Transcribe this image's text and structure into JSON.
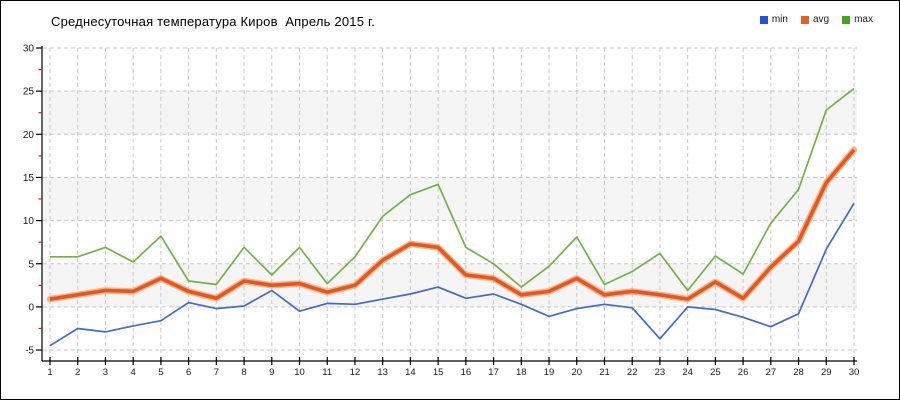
{
  "title": "Среднесуточная температура Киров  Апрель 2015 г.",
  "legend": {
    "items": [
      {
        "label": "min",
        "color": "#2052d8"
      },
      {
        "label": "avg",
        "color": "#e8611c"
      },
      {
        "label": "max",
        "color": "#3fa81e"
      }
    ]
  },
  "chart_data": {
    "type": "line",
    "title": "Среднесуточная температура Киров  Апрель 2015 г.",
    "xlabel": "",
    "ylabel": "",
    "x": [
      1,
      2,
      3,
      4,
      5,
      6,
      7,
      8,
      9,
      10,
      11,
      12,
      13,
      14,
      15,
      16,
      17,
      18,
      19,
      20,
      21,
      22,
      23,
      24,
      25,
      26,
      27,
      28,
      29,
      30
    ],
    "y_ticks": [
      -5,
      0,
      5,
      10,
      15,
      20,
      25,
      30
    ],
    "y_minor_ticks": [
      -2.5,
      2.5,
      7.5,
      12.5,
      17.5,
      22.5,
      27.5
    ],
    "ylim": [
      -5,
      30
    ],
    "grid": true,
    "legend_position": "top-right",
    "shaded_bands": [
      [
        0,
        5
      ],
      [
        10,
        15
      ],
      [
        20,
        25
      ]
    ],
    "series": [
      {
        "name": "min",
        "color": "#4169cf",
        "width": 1.7,
        "values": [
          -4.5,
          -2.5,
          -2.9,
          -2.2,
          -1.6,
          0.5,
          -0.2,
          0.1,
          1.9,
          -0.5,
          0.4,
          0.3,
          0.9,
          1.5,
          2.3,
          1.0,
          1.5,
          0.3,
          -1.1,
          -0.2,
          0.3,
          -0.1,
          -3.7,
          0.0,
          -0.3,
          -1.2,
          -2.3,
          -0.8,
          6.7,
          12.0
        ]
      },
      {
        "name": "avg",
        "color": "#e2581d",
        "halo_color": "#f6b28c",
        "width": 3.6,
        "values": [
          0.9,
          1.4,
          1.9,
          1.8,
          3.3,
          1.8,
          1.0,
          3.0,
          2.5,
          2.7,
          1.7,
          2.5,
          5.4,
          7.3,
          6.9,
          3.7,
          3.3,
          1.4,
          1.8,
          3.3,
          1.4,
          1.8,
          1.4,
          0.9,
          2.9,
          1.0,
          4.6,
          7.6,
          14.4,
          18.2
        ]
      },
      {
        "name": "max",
        "color": "#72b244",
        "width": 1.7,
        "values": [
          5.8,
          5.8,
          6.9,
          5.2,
          8.2,
          3.0,
          2.6,
          6.9,
          3.7,
          6.9,
          2.7,
          5.8,
          10.5,
          13.0,
          14.2,
          6.9,
          5.0,
          2.3,
          4.7,
          8.1,
          2.6,
          4.1,
          6.2,
          1.9,
          5.9,
          3.8,
          9.7,
          13.6,
          22.8,
          25.3
        ]
      }
    ]
  }
}
